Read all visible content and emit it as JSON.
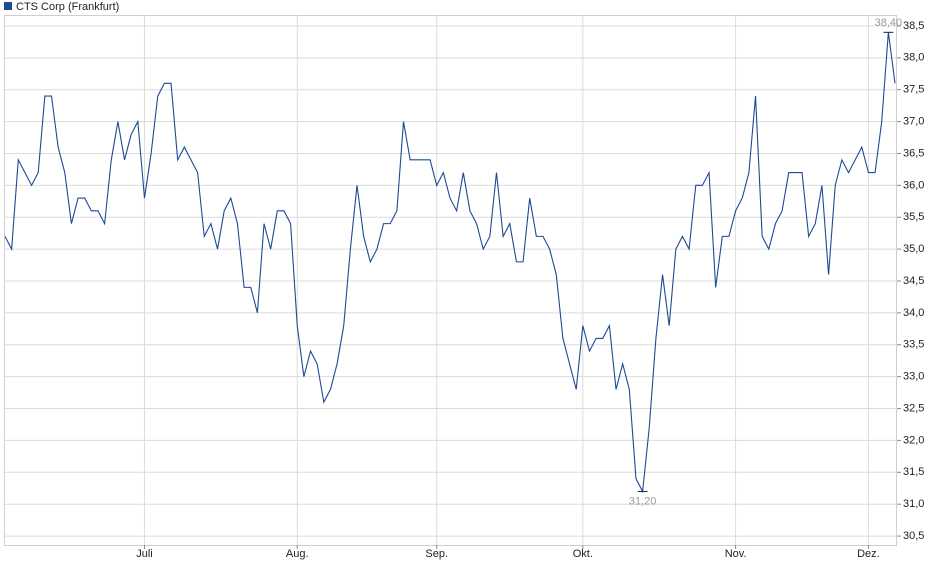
{
  "chart_data": {
    "type": "line",
    "categories": [
      null,
      null,
      null,
      null,
      null,
      null,
      null,
      null,
      null,
      null,
      null,
      null,
      null,
      null,
      null,
      null,
      null,
      null,
      null,
      null,
      null,
      "Juli",
      null,
      null,
      null,
      null,
      null,
      null,
      null,
      null,
      null,
      null,
      null,
      null,
      null,
      null,
      null,
      null,
      null,
      null,
      null,
      null,
      null,
      null,
      "Aug.",
      null,
      null,
      null,
      null,
      null,
      null,
      null,
      null,
      null,
      null,
      null,
      null,
      null,
      null,
      null,
      null,
      null,
      null,
      null,
      null,
      "Sep.",
      null,
      null,
      null,
      null,
      null,
      null,
      null,
      null,
      null,
      null,
      null,
      null,
      null,
      null,
      null,
      null,
      null,
      null,
      null,
      null,
      null,
      "Okt.",
      null,
      null,
      null,
      null,
      null,
      null,
      null,
      null,
      null,
      null,
      null,
      null,
      null,
      null,
      null,
      null,
      null,
      null,
      null,
      null,
      null,
      null,
      "Nov.",
      null,
      null,
      null,
      null,
      null,
      null,
      null,
      null,
      null,
      null,
      null,
      null,
      null,
      null,
      null,
      null,
      null,
      null,
      null,
      "Dez.",
      null,
      null,
      null,
      null
    ],
    "series": [
      {
        "name": "CTS Corp (Frankfurt)",
        "color": "#1c4a94",
        "values": [
          35.2,
          35.0,
          36.4,
          36.2,
          36.0,
          36.2,
          37.4,
          37.4,
          36.6,
          36.2,
          35.4,
          35.8,
          35.8,
          35.6,
          35.6,
          35.4,
          36.4,
          37.0,
          36.4,
          36.8,
          37.0,
          35.8,
          36.5,
          37.4,
          37.6,
          37.6,
          36.4,
          36.6,
          36.4,
          36.2,
          35.2,
          35.4,
          35.0,
          35.6,
          35.8,
          35.4,
          34.4,
          34.4,
          34.0,
          35.4,
          35.0,
          35.6,
          35.6,
          35.4,
          33.8,
          33.0,
          33.4,
          33.2,
          32.6,
          32.8,
          33.2,
          33.8,
          35.0,
          36.0,
          35.2,
          34.8,
          35.0,
          35.4,
          35.4,
          35.6,
          37.0,
          36.4,
          36.4,
          36.4,
          36.4,
          36.0,
          36.2,
          35.8,
          35.6,
          36.2,
          35.6,
          35.4,
          35.0,
          35.2,
          36.2,
          35.2,
          35.4,
          34.8,
          34.8,
          35.8,
          35.2,
          35.2,
          35.0,
          34.6,
          33.6,
          33.2,
          32.8,
          33.8,
          33.4,
          33.6,
          33.6,
          33.8,
          32.8,
          33.2,
          32.8,
          31.4,
          31.2,
          32.2,
          33.6,
          34.6,
          33.8,
          35.0,
          35.2,
          35.0,
          36.0,
          36.0,
          36.2,
          34.4,
          35.2,
          35.2,
          35.6,
          35.8,
          36.2,
          37.4,
          35.2,
          35.0,
          35.4,
          35.6,
          36.2,
          36.2,
          36.2,
          35.2,
          35.4,
          36.0,
          34.6,
          36.0,
          36.4,
          36.2,
          36.4,
          36.6,
          36.2,
          36.2,
          37.0,
          38.4,
          37.6
        ],
        "value_labels": [
          null,
          null,
          null,
          null,
          null,
          null,
          null,
          null,
          null,
          null,
          null,
          null,
          null,
          null,
          null,
          null,
          null,
          null,
          null,
          null,
          null,
          null,
          null,
          null,
          null,
          null,
          null,
          null,
          null,
          null,
          null,
          null,
          null,
          null,
          null,
          null,
          null,
          null,
          null,
          null,
          null,
          null,
          null,
          null,
          null,
          null,
          null,
          null,
          null,
          null,
          null,
          null,
          null,
          null,
          null,
          null,
          null,
          null,
          null,
          null,
          null,
          null,
          null,
          null,
          null,
          null,
          null,
          null,
          null,
          null,
          null,
          null,
          null,
          null,
          null,
          null,
          null,
          null,
          null,
          null,
          null,
          null,
          null,
          null,
          null,
          null,
          null,
          null,
          null,
          null,
          null,
          null,
          null,
          null,
          null,
          null,
          "31,20",
          null,
          null,
          null,
          null,
          null,
          null,
          null,
          null,
          null,
          null,
          null,
          null,
          null,
          null,
          null,
          null,
          null,
          null,
          null,
          null,
          null,
          null,
          null,
          null,
          null,
          null,
          null,
          null,
          null,
          null,
          null,
          null,
          null,
          null,
          null,
          null,
          "38,40",
          null
        ]
      }
    ],
    "ylim": [
      30.36,
      38.75
    ],
    "yticks": [
      {
        "value": 30.5,
        "label": "30,5"
      },
      {
        "value": 31,
        "label": "31,0"
      },
      {
        "value": 31.5,
        "label": "31,5"
      },
      {
        "value": 32,
        "label": "32,0"
      },
      {
        "value": 32.5,
        "label": "32,5"
      },
      {
        "value": 33,
        "label": "33,0"
      },
      {
        "value": 33.5,
        "label": "33,5"
      },
      {
        "value": 34,
        "label": "34,0"
      },
      {
        "value": 34.5,
        "label": "34,5"
      },
      {
        "value": 35,
        "label": "35,0"
      },
      {
        "value": 35.5,
        "label": "35,5"
      },
      {
        "value": 36,
        "label": "36,0"
      },
      {
        "value": 36.5,
        "label": "36,5"
      },
      {
        "value": 37,
        "label": "37,0"
      },
      {
        "value": 37.5,
        "label": "37,5"
      },
      {
        "value": 38,
        "label": "38,0"
      },
      {
        "value": 38.5,
        "label": "38,5"
      }
    ],
    "grid": true,
    "legend": "top-left"
  }
}
